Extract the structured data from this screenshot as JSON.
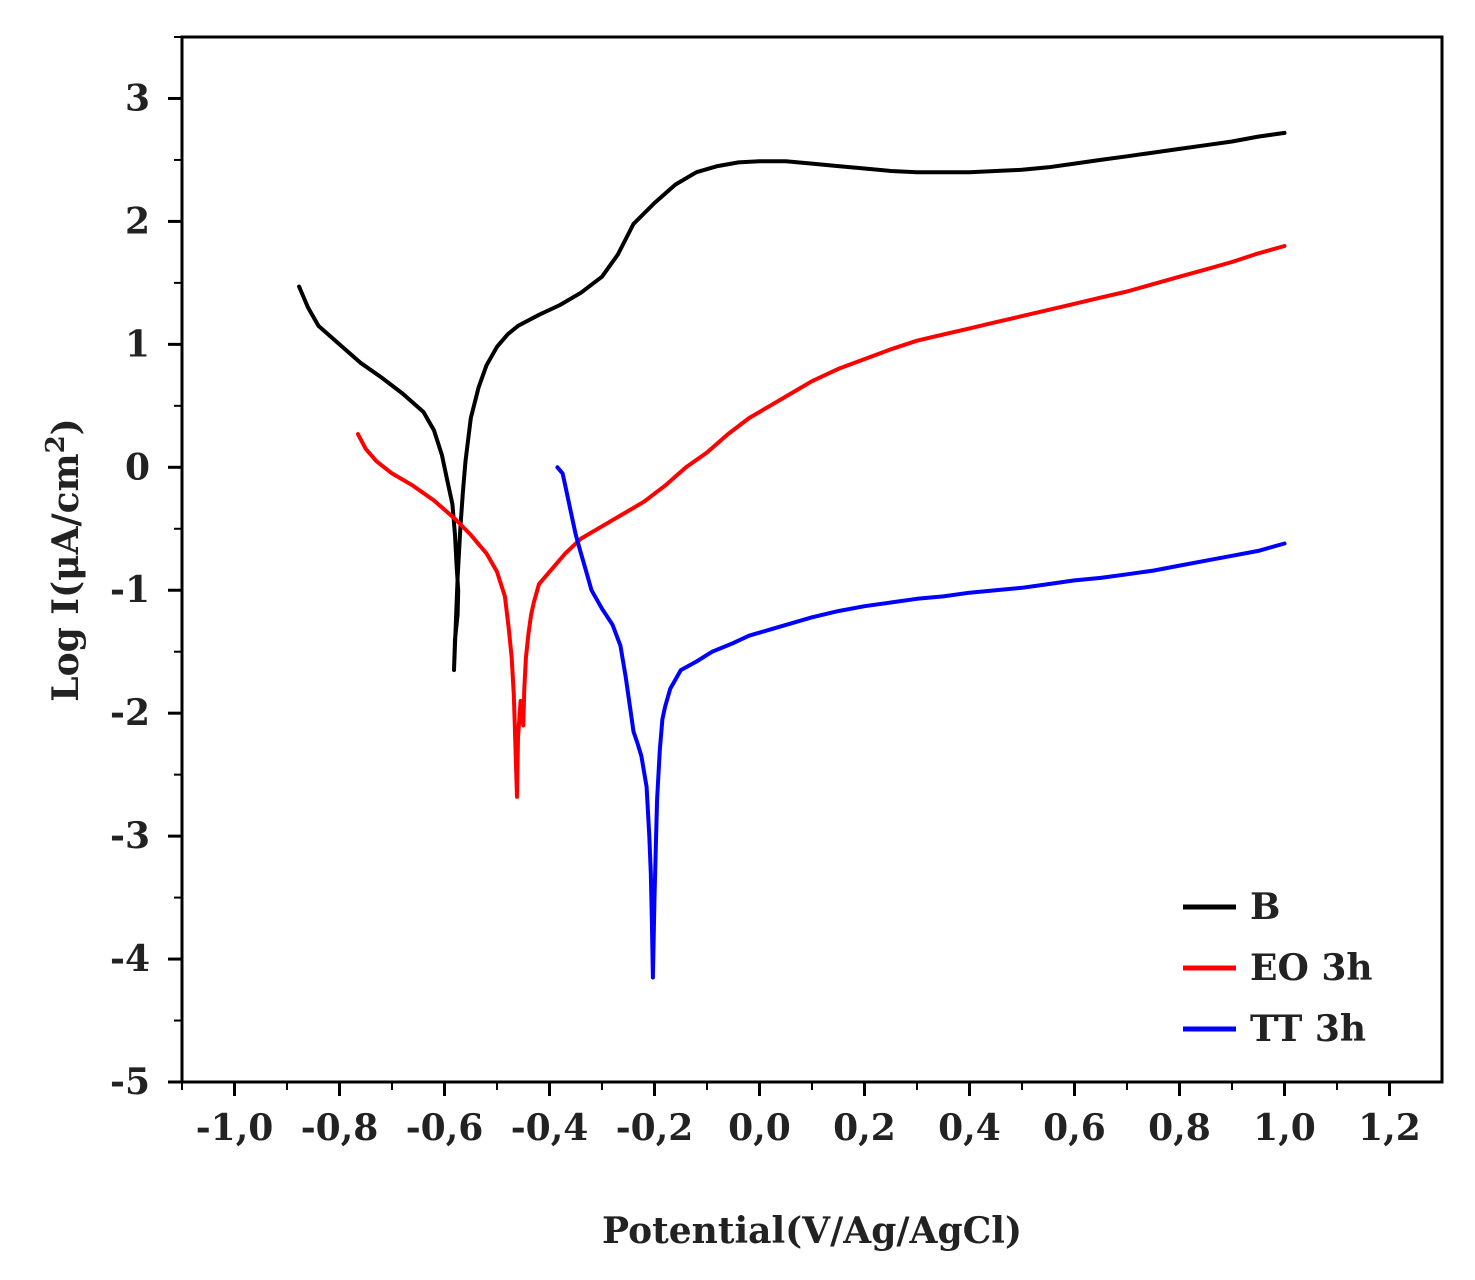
{
  "chart_data": {
    "type": "line",
    "xlabel": "Potential(V/Ag/AgCl)",
    "ylabel_main": "Log I(μA/cm",
    "ylabel_sup": "2",
    "ylabel_close": ")",
    "xlim": [
      -1.1,
      1.3
    ],
    "ylim": [
      -5,
      3.5
    ],
    "xticks": [
      -1.0,
      -0.8,
      -0.6,
      -0.4,
      -0.2,
      0.0,
      0.2,
      0.4,
      0.6,
      0.8,
      1.0,
      1.2
    ],
    "xtick_labels": [
      "-1,0",
      "-0,8",
      "-0,6",
      "-0,4",
      "-0,2",
      "0,0",
      "0,2",
      "0,4",
      "0,6",
      "0,8",
      "1,0",
      "1,2"
    ],
    "yticks": [
      -5,
      -4,
      -3,
      -2,
      -1,
      0,
      1,
      2,
      3
    ],
    "ytick_labels": [
      "-5",
      "-4",
      "-3",
      "-2",
      "-1",
      "0",
      "1",
      "2",
      "3"
    ],
    "grid": false,
    "legend_position": "bottom-right",
    "series": [
      {
        "name": "B",
        "color": "#000000",
        "x": [
          -0.877,
          -0.86,
          -0.84,
          -0.8,
          -0.76,
          -0.72,
          -0.68,
          -0.64,
          -0.62,
          -0.605,
          -0.595,
          -0.585,
          -0.58,
          -0.577,
          -0.574,
          -0.575,
          -0.58,
          -0.582,
          -0.575,
          -0.57,
          -0.565,
          -0.56,
          -0.55,
          -0.535,
          -0.52,
          -0.5,
          -0.48,
          -0.46,
          -0.42,
          -0.38,
          -0.34,
          -0.3,
          -0.27,
          -0.24,
          -0.2,
          -0.16,
          -0.12,
          -0.08,
          -0.04,
          0.0,
          0.05,
          0.1,
          0.15,
          0.2,
          0.25,
          0.3,
          0.35,
          0.4,
          0.45,
          0.5,
          0.55,
          0.6,
          0.65,
          0.7,
          0.75,
          0.8,
          0.85,
          0.9,
          0.95,
          1.0
        ],
        "y": [
          1.47,
          1.3,
          1.15,
          1.0,
          0.85,
          0.73,
          0.6,
          0.45,
          0.3,
          0.1,
          -0.1,
          -0.3,
          -0.55,
          -0.8,
          -1.0,
          -1.2,
          -1.4,
          -1.65,
          -0.9,
          -0.5,
          -0.2,
          0.05,
          0.4,
          0.65,
          0.83,
          0.98,
          1.08,
          1.15,
          1.24,
          1.32,
          1.42,
          1.55,
          1.73,
          1.98,
          2.15,
          2.3,
          2.4,
          2.45,
          2.48,
          2.49,
          2.49,
          2.47,
          2.45,
          2.43,
          2.41,
          2.4,
          2.4,
          2.4,
          2.41,
          2.42,
          2.44,
          2.47,
          2.5,
          2.53,
          2.56,
          2.59,
          2.62,
          2.65,
          2.69,
          2.72
        ]
      },
      {
        "name": "EO 3h",
        "color": "#ff0000",
        "x": [
          -0.765,
          -0.75,
          -0.73,
          -0.7,
          -0.66,
          -0.62,
          -0.58,
          -0.55,
          -0.52,
          -0.5,
          -0.485,
          -0.478,
          -0.472,
          -0.468,
          -0.466,
          -0.464,
          -0.462,
          -0.46,
          -0.455,
          -0.45,
          -0.448,
          -0.445,
          -0.44,
          -0.435,
          -0.43,
          -0.42,
          -0.4,
          -0.37,
          -0.34,
          -0.3,
          -0.26,
          -0.22,
          -0.18,
          -0.14,
          -0.1,
          -0.06,
          -0.02,
          0.02,
          0.06,
          0.1,
          0.15,
          0.2,
          0.25,
          0.3,
          0.35,
          0.4,
          0.45,
          0.5,
          0.55,
          0.6,
          0.65,
          0.7,
          0.75,
          0.8,
          0.85,
          0.9,
          0.95,
          1.0
        ],
        "y": [
          0.27,
          0.15,
          0.05,
          -0.05,
          -0.15,
          -0.27,
          -0.42,
          -0.55,
          -0.7,
          -0.85,
          -1.05,
          -1.3,
          -1.55,
          -1.85,
          -2.1,
          -2.4,
          -2.68,
          -2.2,
          -1.9,
          -2.1,
          -1.8,
          -1.55,
          -1.35,
          -1.2,
          -1.1,
          -0.95,
          -0.85,
          -0.7,
          -0.58,
          -0.48,
          -0.38,
          -0.28,
          -0.15,
          0.0,
          0.12,
          0.27,
          0.4,
          0.5,
          0.6,
          0.7,
          0.8,
          0.88,
          0.96,
          1.03,
          1.08,
          1.13,
          1.18,
          1.23,
          1.28,
          1.33,
          1.38,
          1.43,
          1.49,
          1.55,
          1.61,
          1.67,
          1.74,
          1.8
        ]
      },
      {
        "name": "TT 3h",
        "color": "#0000ff",
        "x": [
          -0.385,
          -0.375,
          -0.37,
          -0.365,
          -0.36,
          -0.35,
          -0.34,
          -0.33,
          -0.32,
          -0.3,
          -0.28,
          -0.265,
          -0.255,
          -0.245,
          -0.24,
          -0.232,
          -0.225,
          -0.215,
          -0.21,
          -0.207,
          -0.205,
          -0.203,
          -0.2,
          -0.197,
          -0.195,
          -0.19,
          -0.185,
          -0.18,
          -0.17,
          -0.15,
          -0.12,
          -0.09,
          -0.05,
          -0.02,
          0.02,
          0.06,
          0.1,
          0.15,
          0.2,
          0.25,
          0.3,
          0.35,
          0.4,
          0.45,
          0.5,
          0.55,
          0.6,
          0.65,
          0.7,
          0.75,
          0.8,
          0.85,
          0.9,
          0.95,
          1.0
        ],
        "y": [
          0.0,
          -0.05,
          -0.15,
          -0.25,
          -0.35,
          -0.55,
          -0.7,
          -0.85,
          -1.0,
          -1.15,
          -1.28,
          -1.45,
          -1.7,
          -2.0,
          -2.15,
          -2.25,
          -2.35,
          -2.6,
          -3.0,
          -3.3,
          -3.7,
          -4.15,
          -3.5,
          -3.0,
          -2.7,
          -2.3,
          -2.05,
          -1.95,
          -1.8,
          -1.65,
          -1.58,
          -1.5,
          -1.43,
          -1.37,
          -1.32,
          -1.27,
          -1.22,
          -1.17,
          -1.13,
          -1.1,
          -1.07,
          -1.05,
          -1.02,
          -1.0,
          -0.98,
          -0.95,
          -0.92,
          -0.9,
          -0.87,
          -0.84,
          -0.8,
          -0.76,
          -0.72,
          -0.68,
          -0.62
        ]
      }
    ]
  }
}
